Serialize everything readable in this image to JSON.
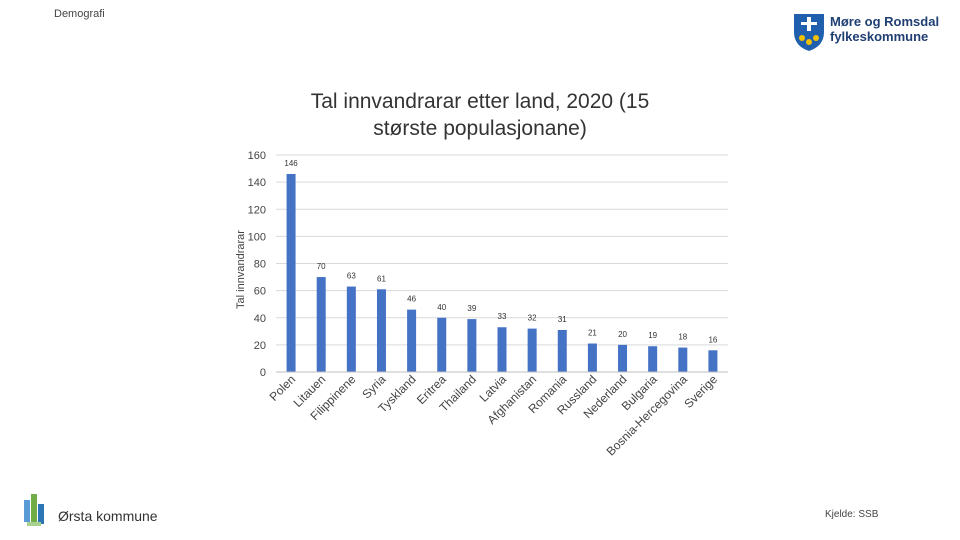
{
  "header": {
    "section_label": "Demografi",
    "org_name_line1": "Møre og Romsdal",
    "org_name_line2": "fylkeskommune"
  },
  "footer": {
    "municipality": "Ørsta kommune",
    "source": "Kjelde: SSB"
  },
  "colors": {
    "bar": "#4472c4",
    "grid": "#d9d9d9",
    "brand": "#1f3f73"
  },
  "chart_data": {
    "type": "bar",
    "title_line1": "Tal innvandrarar etter land, 2020 (15",
    "title_line2": "største populasjonane)",
    "xlabel": "",
    "ylabel": "Tal innvandrarar",
    "ylim": [
      0,
      160
    ],
    "yticks": [
      0,
      20,
      40,
      60,
      80,
      100,
      120,
      140,
      160
    ],
    "grid": true,
    "categories": [
      "Polen",
      "Litauen",
      "Filippinene",
      "Syria",
      "Tyskland",
      "Eritrea",
      "Thailand",
      "Latvia",
      "Afghanistan",
      "Romania",
      "Russland",
      "Nederland",
      "Bulgaria",
      "Bosnia-Hercegovina",
      "Sverige"
    ],
    "values": [
      146,
      70,
      63,
      61,
      46,
      40,
      39,
      33,
      32,
      31,
      21,
      20,
      19,
      18,
      16
    ]
  }
}
